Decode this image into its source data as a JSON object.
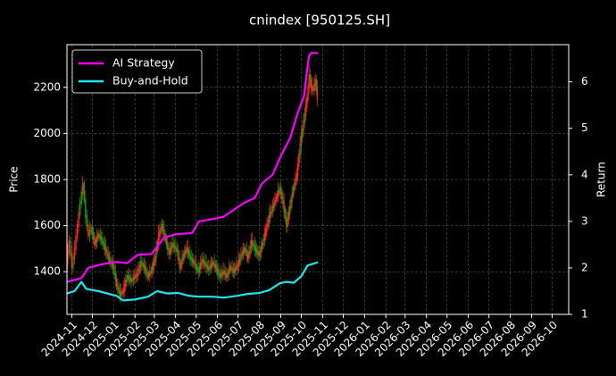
{
  "chart_data": {
    "type": "line",
    "title": "cnindex [950125.SH]",
    "ylabel_left": "Price",
    "ylabel_right": "Return",
    "ylim_left": [
      1215,
      2385
    ],
    "ylim_right": [
      1.0,
      6.8
    ],
    "xlim": [
      "2024-10-25",
      "2026-10-25"
    ],
    "left_ticks": [
      1400,
      1600,
      1800,
      2000,
      2200
    ],
    "right_ticks": [
      1,
      2,
      3,
      4,
      5,
      6
    ],
    "x_ticks": [
      {
        "label": "2024-11",
        "date": "2024-11-01"
      },
      {
        "label": "2024-12",
        "date": "2024-12-01"
      },
      {
        "label": "2025-01",
        "date": "2025-01-01"
      },
      {
        "label": "2025-02",
        "date": "2025-02-01"
      },
      {
        "label": "2025-03",
        "date": "2025-03-01"
      },
      {
        "label": "2025-04",
        "date": "2025-04-01"
      },
      {
        "label": "2025-05",
        "date": "2025-05-01"
      },
      {
        "label": "2025-06",
        "date": "2025-06-01"
      },
      {
        "label": "2025-07",
        "date": "2025-07-01"
      },
      {
        "label": "2025-08",
        "date": "2025-08-01"
      },
      {
        "label": "2025-09",
        "date": "2025-09-01"
      },
      {
        "label": "2025-10",
        "date": "2025-10-01"
      },
      {
        "label": "2025-11",
        "date": "2025-11-01"
      },
      {
        "label": "2025-12",
        "date": "2025-12-01"
      },
      {
        "label": "2026-01",
        "date": "2026-01-01"
      },
      {
        "label": "2026-02",
        "date": "2026-02-01"
      },
      {
        "label": "2026-03",
        "date": "2026-03-01"
      },
      {
        "label": "2026-04",
        "date": "2026-04-01"
      },
      {
        "label": "2026-05",
        "date": "2026-05-01"
      },
      {
        "label": "2026-06",
        "date": "2026-06-01"
      },
      {
        "label": "2026-07",
        "date": "2026-07-01"
      },
      {
        "label": "2026-08",
        "date": "2026-08-01"
      },
      {
        "label": "2026-09",
        "date": "2026-09-01"
      },
      {
        "label": "2026-10",
        "date": "2026-10-01"
      }
    ],
    "grid": true,
    "legend_position": "top-left",
    "price_bars": {
      "up_color": "#ff2b2b",
      "down_color": "#12a012",
      "points": [
        [
          "2024-10-25",
          1440
        ],
        [
          "2024-10-29",
          1530
        ],
        [
          "2024-11-02",
          1420
        ],
        [
          "2024-11-06",
          1500
        ],
        [
          "2024-11-10",
          1600
        ],
        [
          "2024-11-14",
          1700
        ],
        [
          "2024-11-18",
          1780
        ],
        [
          "2024-11-22",
          1640
        ],
        [
          "2024-11-26",
          1560
        ],
        [
          "2024-11-30",
          1590
        ],
        [
          "2024-12-05",
          1520
        ],
        [
          "2024-12-10",
          1560
        ],
        [
          "2024-12-15",
          1540
        ],
        [
          "2024-12-20",
          1500
        ],
        [
          "2024-12-25",
          1460
        ],
        [
          "2025-01-01",
          1420
        ],
        [
          "2025-01-06",
          1340
        ],
        [
          "2025-01-11",
          1300
        ],
        [
          "2025-01-16",
          1320
        ],
        [
          "2025-01-21",
          1380
        ],
        [
          "2025-01-27",
          1360
        ],
        [
          "2025-02-05",
          1390
        ],
        [
          "2025-02-10",
          1440
        ],
        [
          "2025-02-15",
          1420
        ],
        [
          "2025-02-20",
          1380
        ],
        [
          "2025-02-25",
          1400
        ],
        [
          "2025-03-03",
          1460
        ],
        [
          "2025-03-08",
          1560
        ],
        [
          "2025-03-13",
          1600
        ],
        [
          "2025-03-18",
          1540
        ],
        [
          "2025-03-23",
          1480
        ],
        [
          "2025-03-28",
          1520
        ],
        [
          "2025-04-04",
          1490
        ],
        [
          "2025-04-08",
          1420
        ],
        [
          "2025-04-13",
          1470
        ],
        [
          "2025-04-18",
          1500
        ],
        [
          "2025-04-23",
          1460
        ],
        [
          "2025-04-28",
          1440
        ],
        [
          "2025-05-05",
          1400
        ],
        [
          "2025-05-10",
          1450
        ],
        [
          "2025-05-15",
          1430
        ],
        [
          "2025-05-20",
          1410
        ],
        [
          "2025-05-25",
          1440
        ],
        [
          "2025-05-30",
          1420
        ],
        [
          "2025-06-05",
          1380
        ],
        [
          "2025-06-10",
          1400
        ],
        [
          "2025-06-15",
          1380
        ],
        [
          "2025-06-20",
          1420
        ],
        [
          "2025-06-25",
          1400
        ],
        [
          "2025-07-01",
          1430
        ],
        [
          "2025-07-06",
          1470
        ],
        [
          "2025-07-11",
          1500
        ],
        [
          "2025-07-16",
          1460
        ],
        [
          "2025-07-21",
          1530
        ],
        [
          "2025-07-26",
          1500
        ],
        [
          "2025-08-01",
          1470
        ],
        [
          "2025-08-06",
          1520
        ],
        [
          "2025-08-11",
          1580
        ],
        [
          "2025-08-16",
          1640
        ],
        [
          "2025-08-21",
          1680
        ],
        [
          "2025-08-26",
          1720
        ],
        [
          "2025-08-31",
          1760
        ],
        [
          "2025-09-05",
          1700
        ],
        [
          "2025-09-10",
          1600
        ],
        [
          "2025-09-15",
          1680
        ],
        [
          "2025-09-20",
          1760
        ],
        [
          "2025-09-25",
          1820
        ],
        [
          "2025-09-30",
          1950
        ],
        [
          "2025-10-05",
          2050
        ],
        [
          "2025-10-10",
          2150
        ],
        [
          "2025-10-13",
          2250
        ],
        [
          "2025-10-16",
          2200
        ],
        [
          "2025-10-19",
          2190
        ],
        [
          "2025-10-22",
          2230
        ],
        [
          "2025-10-25",
          2150
        ]
      ]
    },
    "series": [
      {
        "name": "AI Strategy",
        "color": "#ff00ff",
        "points": [
          [
            "2024-10-25",
            1.7
          ],
          [
            "2024-11-15",
            1.78
          ],
          [
            "2024-11-25",
            2.0
          ],
          [
            "2024-12-15",
            2.08
          ],
          [
            "2025-01-05",
            2.13
          ],
          [
            "2025-01-20",
            2.1
          ],
          [
            "2025-02-05",
            2.28
          ],
          [
            "2025-02-25",
            2.3
          ],
          [
            "2025-03-05",
            2.45
          ],
          [
            "2025-03-15",
            2.65
          ],
          [
            "2025-04-01",
            2.72
          ],
          [
            "2025-04-25",
            2.75
          ],
          [
            "2025-05-05",
            3.0
          ],
          [
            "2025-05-25",
            3.05
          ],
          [
            "2025-06-10",
            3.1
          ],
          [
            "2025-06-25",
            3.25
          ],
          [
            "2025-07-10",
            3.4
          ],
          [
            "2025-07-25",
            3.5
          ],
          [
            "2025-08-05",
            3.82
          ],
          [
            "2025-08-20",
            4.0
          ],
          [
            "2025-09-01",
            4.4
          ],
          [
            "2025-09-15",
            4.8
          ],
          [
            "2025-09-25",
            5.3
          ],
          [
            "2025-10-05",
            5.7
          ],
          [
            "2025-10-12",
            6.55
          ],
          [
            "2025-10-15",
            6.62
          ],
          [
            "2025-10-25",
            6.62
          ]
        ]
      },
      {
        "name": "Buy-and-Hold",
        "color": "#1fe6f0",
        "points": [
          [
            "2024-10-25",
            1.45
          ],
          [
            "2024-11-05",
            1.5
          ],
          [
            "2024-11-15",
            1.7
          ],
          [
            "2024-11-22",
            1.55
          ],
          [
            "2024-12-10",
            1.5
          ],
          [
            "2025-01-05",
            1.4
          ],
          [
            "2025-01-15",
            1.3
          ],
          [
            "2025-02-01",
            1.32
          ],
          [
            "2025-02-20",
            1.38
          ],
          [
            "2025-03-05",
            1.5
          ],
          [
            "2025-03-20",
            1.45
          ],
          [
            "2025-04-05",
            1.46
          ],
          [
            "2025-04-20",
            1.4
          ],
          [
            "2025-05-05",
            1.38
          ],
          [
            "2025-05-25",
            1.38
          ],
          [
            "2025-06-10",
            1.36
          ],
          [
            "2025-06-30",
            1.4
          ],
          [
            "2025-07-15",
            1.44
          ],
          [
            "2025-08-01",
            1.46
          ],
          [
            "2025-08-15",
            1.52
          ],
          [
            "2025-08-31",
            1.67
          ],
          [
            "2025-09-10",
            1.7
          ],
          [
            "2025-09-20",
            1.68
          ],
          [
            "2025-10-01",
            1.82
          ],
          [
            "2025-10-10",
            2.05
          ],
          [
            "2025-10-25",
            2.12
          ]
        ]
      }
    ]
  }
}
